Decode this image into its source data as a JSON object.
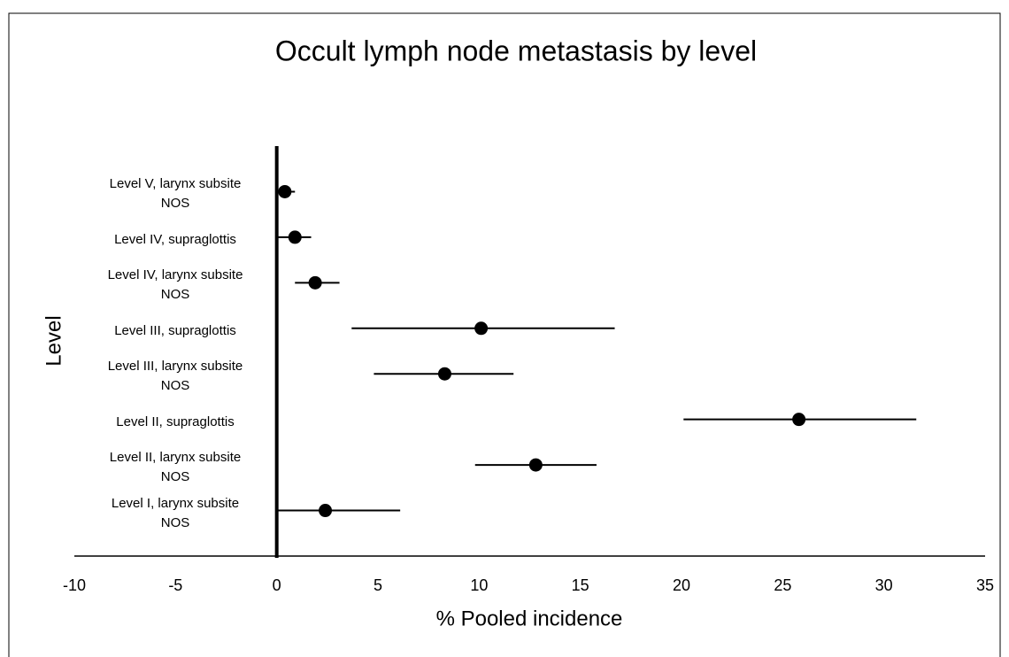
{
  "chart_data": {
    "type": "forest",
    "title": "Occult lymph node metastasis by level",
    "x_label": "% Pooled incidence",
    "y_label": "Level",
    "categories": [
      "Level V,  larynx subsite\nNOS",
      "Level IV, supraglottis",
      "Level IV, larynx subsite\nNOS",
      "Level III, supraglottis",
      "Level III, larynx subsite\nNOS",
      "Level II, supraglottis",
      "Level II, larynx subsite\nNOS",
      "Level I,  larynx subsite\nNOS"
    ],
    "values": [
      0.4,
      0.9,
      1.9,
      10.1,
      8.3,
      25.8,
      12.8,
      2.4
    ],
    "lower": [
      0,
      0,
      0.9,
      3.7,
      4.8,
      20.1,
      9.8,
      0
    ],
    "upper": [
      0.9,
      1.7,
      3.1,
      16.7,
      11.7,
      31.6,
      15.8,
      6.1
    ],
    "color": "#000000",
    "xlim": [
      -10,
      35
    ],
    "xticks": [
      -10,
      -5,
      0,
      5,
      10,
      15,
      20,
      25,
      30,
      35
    ]
  }
}
